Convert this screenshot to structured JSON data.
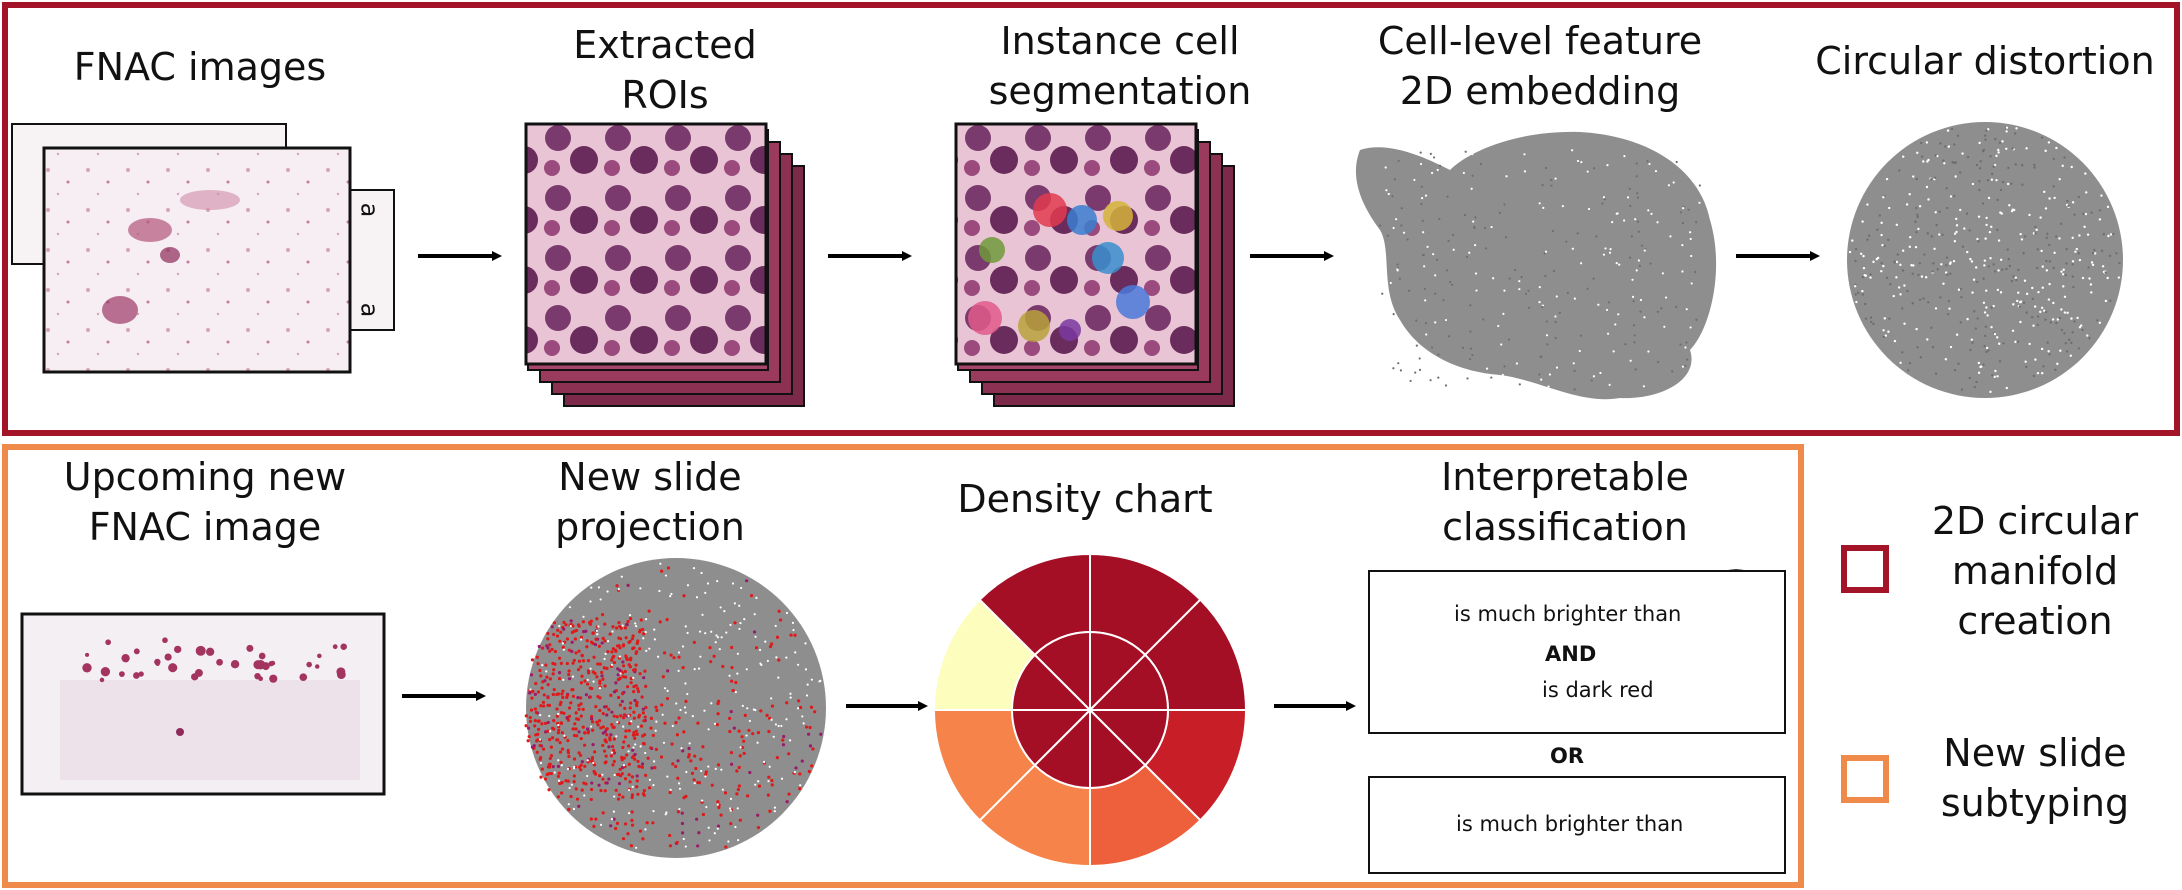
{
  "colors": {
    "manifold_border": "#a31428",
    "subtyping_border": "#f08a4b",
    "scatter_gray": "#8e8e8e",
    "projection_red": "#e0191a",
    "density_dark_red": "#a50f26",
    "density_light_yellow": "#fdfdbe",
    "density_orange": "#f6844a",
    "density_mid_orange": "#ee5f3b",
    "density_red": "#c81e28"
  },
  "top_row": {
    "step1_title": "FNAC images",
    "step2_title": "Extracted\nROIs",
    "step3_title": "Instance cell\nsegmentation",
    "step4_title": "Cell-level feature\n2D embedding",
    "step5_title": "Circular distortion",
    "slide_label_a": "a"
  },
  "bottom_row": {
    "step1_title": "Upcoming new\nFNAC image",
    "step2_title": "New slide\nprojection",
    "step3_title": "Density chart",
    "step4_title": "Interpretable\nclassification"
  },
  "classification": {
    "rule1_text_a": "is much brighter than",
    "rule1_and": "AND",
    "rule1_text_b": "is dark red",
    "or_label": "OR",
    "rule2_text": "is much brighter than"
  },
  "legend": {
    "manifold_label": "2D circular\nmanifold\ncreation",
    "subtyping_label": "New slide\nsubtyping"
  },
  "icons": [
    "arrow-right-icon",
    "slide-stack-icon",
    "roi-stack-icon",
    "segmentation-stack-icon",
    "embedding-scatter-icon",
    "circle-scatter-icon",
    "density-pie-icon",
    "mini-pie-icon"
  ]
}
